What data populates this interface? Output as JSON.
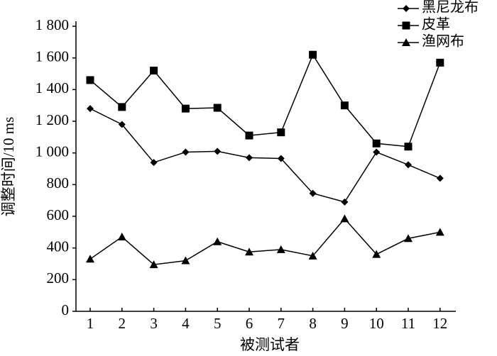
{
  "chart_data": {
    "type": "line",
    "x_label": "被测试者",
    "y_label": "调整时间/10 ms",
    "categories": [
      "1",
      "2",
      "3",
      "4",
      "5",
      "6",
      "7",
      "8",
      "9",
      "10",
      "11",
      "12"
    ],
    "series": [
      {
        "name": "黑尼龙布",
        "color": "#000000",
        "marker": "diamond",
        "values": [
          1280,
          1180,
          940,
          1005,
          1010,
          970,
          965,
          745,
          690,
          1005,
          925,
          840
        ]
      },
      {
        "name": "皮革",
        "color": "#000000",
        "marker": "square",
        "values": [
          1460,
          1290,
          1520,
          1280,
          1285,
          1110,
          1130,
          1620,
          1300,
          1060,
          1040,
          1570
        ]
      },
      {
        "name": "渔网布",
        "color": "#000000",
        "marker": "triangle",
        "values": [
          330,
          470,
          295,
          320,
          440,
          375,
          390,
          350,
          585,
          360,
          460,
          500
        ]
      }
    ],
    "ylim": [
      0,
      1800
    ],
    "yticks": [
      0,
      200,
      400,
      600,
      800,
      {
        "value": 1000,
        "label": "1 000"
      },
      {
        "value": 1200,
        "label": "1 200"
      },
      {
        "value": 1400,
        "label": "1 400"
      },
      {
        "value": 1600,
        "label": "1 600"
      },
      {
        "value": 1800,
        "label": "1 800"
      }
    ],
    "grid": false,
    "legend": "top-right"
  }
}
